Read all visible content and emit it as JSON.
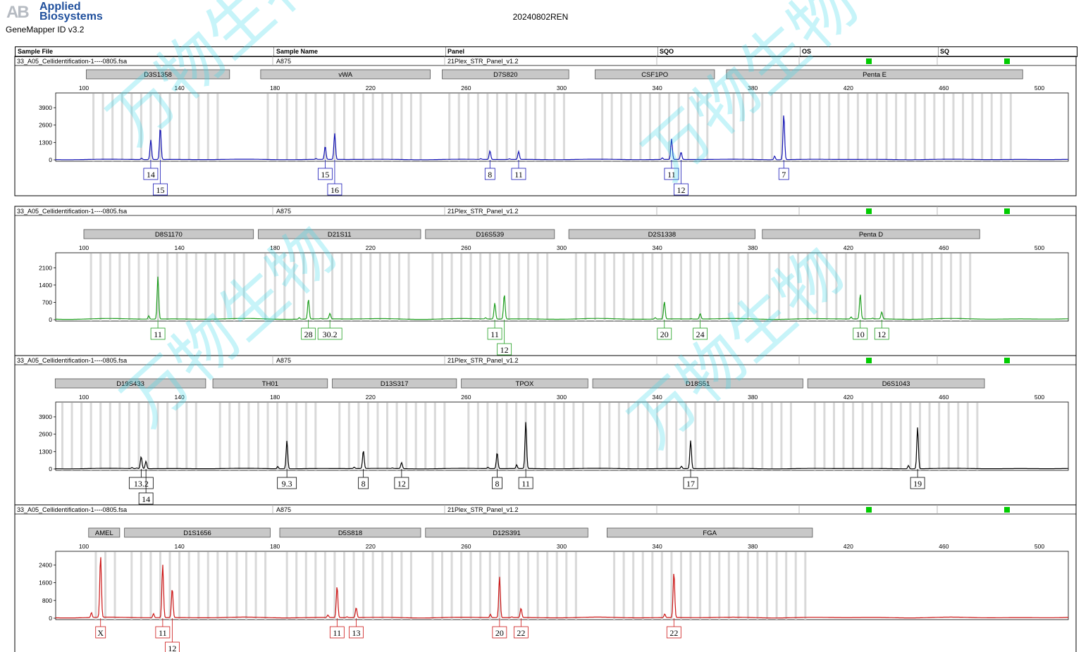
{
  "header": {
    "logo_mark": "AB",
    "logo_line1": "Applied",
    "logo_line2": "Biosystems",
    "software": "GeneMapper ID v3.2",
    "run_title": "20240802REN"
  },
  "table_columns": [
    "Sample File",
    "Sample Name",
    "Panel",
    "SQO",
    "OS",
    "SQ"
  ],
  "panels": [
    {
      "sample_file": "33_A05_Cellidentification-1----0805.fsa",
      "sample_name": "A875",
      "panel": "21Plex_STR_Panel_v1.2",
      "dye_color": "#1515b5",
      "y_ticks": [
        0,
        1300,
        2600,
        3900
      ],
      "y_max": 4900,
      "markers": [
        {
          "name": "D3S1358",
          "start": 101,
          "end": 161
        },
        {
          "name": "vWA",
          "start": 174,
          "end": 245
        },
        {
          "name": "D7S820",
          "start": 250,
          "end": 303
        },
        {
          "name": "CSF1PO",
          "start": 314,
          "end": 364
        },
        {
          "name": "Penta E",
          "start": 369,
          "end": 493
        }
      ],
      "peaks": [
        {
          "size": 128,
          "height": 1300,
          "allele": "14",
          "level": 1
        },
        {
          "size": 132,
          "height": 2400,
          "allele": "15",
          "level": 2
        },
        {
          "size": 201,
          "height": 850,
          "allele": "15",
          "level": 1
        },
        {
          "size": 205,
          "height": 1950,
          "allele": "16",
          "level": 2
        },
        {
          "size": 270,
          "height": 650,
          "allele": "8",
          "level": 1
        },
        {
          "size": 282,
          "height": 600,
          "allele": "11",
          "level": 1
        },
        {
          "size": 346,
          "height": 1500,
          "allele": "11",
          "level": 1
        },
        {
          "size": 350,
          "height": 550,
          "allele": "12",
          "level": 2
        },
        {
          "size": 393,
          "height": 3400,
          "allele": "7",
          "level": 1
        }
      ]
    },
    {
      "sample_file": "33_A05_Cellidentification-1----0805.fsa",
      "sample_name": "A875",
      "panel": "21Plex_STR_Panel_v1.2",
      "dye_color": "#1f9e1f",
      "y_ticks": [
        0,
        700,
        1400,
        2100
      ],
      "y_max": 2650,
      "markers": [
        {
          "name": "D8S1170",
          "start": 100,
          "end": 171
        },
        {
          "name": "D21S11",
          "start": 173,
          "end": 241
        },
        {
          "name": "D16S539",
          "start": 243,
          "end": 297
        },
        {
          "name": "D2S1338",
          "start": 303,
          "end": 381
        },
        {
          "name": "Penta D",
          "start": 384,
          "end": 475
        }
      ],
      "peaks": [
        {
          "size": 131,
          "height": 1720,
          "allele": "11",
          "level": 1
        },
        {
          "size": 194,
          "height": 800,
          "allele": "28",
          "level": 1
        },
        {
          "size": 203,
          "height": 220,
          "allele": "30.2",
          "level": 1
        },
        {
          "size": 272,
          "height": 580,
          "allele": "11",
          "level": 1
        },
        {
          "size": 276,
          "height": 1000,
          "allele": "12",
          "level": 2
        },
        {
          "size": 343,
          "height": 700,
          "allele": "20",
          "level": 1
        },
        {
          "size": 358,
          "height": 220,
          "allele": "24",
          "level": 1
        },
        {
          "size": 425,
          "height": 1000,
          "allele": "10",
          "level": 1
        },
        {
          "size": 434,
          "height": 280,
          "allele": "12",
          "level": 1
        }
      ]
    },
    {
      "sample_file": "33_A05_Cellidentification-1----0805.fsa",
      "sample_name": "A875",
      "panel": "21Plex_STR_Panel_v1.2",
      "dye_color": "#000000",
      "y_ticks": [
        0,
        1300,
        2600,
        3900
      ],
      "y_max": 4900,
      "markers": [
        {
          "name": "D19S433",
          "start": 88,
          "end": 151
        },
        {
          "name": "TH01",
          "start": 154,
          "end": 202
        },
        {
          "name": "D13S317",
          "start": 204,
          "end": 256
        },
        {
          "name": "TPOX",
          "start": 258,
          "end": 311
        },
        {
          "name": "D18S51",
          "start": 313,
          "end": 401
        },
        {
          "name": "D6S1043",
          "start": 403,
          "end": 477
        }
      ],
      "peaks": [
        {
          "size": 124,
          "height": 900,
          "allele": "13.2",
          "level": 1
        },
        {
          "size": 126,
          "height": 550,
          "allele": "14",
          "level": 2
        },
        {
          "size": 185,
          "height": 2100,
          "allele": "9.3",
          "level": 1
        },
        {
          "size": 217,
          "height": 1350,
          "allele": "8",
          "level": 1
        },
        {
          "size": 233,
          "height": 450,
          "allele": "12",
          "level": 1
        },
        {
          "size": 273,
          "height": 1200,
          "allele": "8",
          "level": 1
        },
        {
          "size": 285,
          "height": 3500,
          "allele": "11",
          "level": 1
        },
        {
          "size": 354,
          "height": 2100,
          "allele": "17",
          "level": 1
        },
        {
          "size": 449,
          "height": 3100,
          "allele": "19",
          "level": 1
        }
      ]
    },
    {
      "sample_file": "33_A05_Cellidentification-1----0805.fsa",
      "sample_name": "A875",
      "panel": "21Plex_STR_Panel_v1.2",
      "dye_color": "#cc1515",
      "y_ticks": [
        0,
        800,
        1600,
        2400
      ],
      "y_max": 2950,
      "markers": [
        {
          "name": "AMEL",
          "start": 102,
          "end": 115
        },
        {
          "name": "D1S1656",
          "start": 117,
          "end": 178
        },
        {
          "name": "D5S818",
          "start": 182,
          "end": 241
        },
        {
          "name": "D12S391",
          "start": 243,
          "end": 311
        },
        {
          "name": "FGA",
          "start": 319,
          "end": 405
        }
      ],
      "peaks": [
        {
          "size": 107,
          "height": 2780,
          "allele": "X",
          "level": 1
        },
        {
          "size": 133,
          "height": 2300,
          "allele": "11",
          "level": 1
        },
        {
          "size": 137,
          "height": 1320,
          "allele": "12",
          "level": 2
        },
        {
          "size": 206,
          "height": 1420,
          "allele": "11",
          "level": 1
        },
        {
          "size": 214,
          "height": 450,
          "allele": "13",
          "level": 1
        },
        {
          "size": 274,
          "height": 1850,
          "allele": "20",
          "level": 1
        },
        {
          "size": 283,
          "height": 420,
          "allele": "22",
          "level": 1
        },
        {
          "size": 347,
          "height": 2050,
          "allele": "22",
          "level": 1
        }
      ]
    }
  ],
  "chart_data": [
    {
      "type": "line",
      "dye": "blue",
      "x_axis_ticks": [
        100,
        140,
        180,
        220,
        260,
        300,
        340,
        380,
        420,
        460,
        500
      ],
      "ylim": [
        0,
        4900
      ],
      "markers": [
        "D3S1358",
        "vWA",
        "D7S820",
        "CSF1PO",
        "Penta E"
      ],
      "peaks": [
        [
          128,
          1300,
          "14"
        ],
        [
          132,
          2400,
          "15"
        ],
        [
          201,
          850,
          "15"
        ],
        [
          205,
          1950,
          "16"
        ],
        [
          270,
          650,
          "8"
        ],
        [
          282,
          600,
          "11"
        ],
        [
          346,
          1500,
          "11"
        ],
        [
          350,
          550,
          "12"
        ],
        [
          393,
          3400,
          "7"
        ]
      ]
    },
    {
      "type": "line",
      "dye": "green",
      "x_axis_ticks": [
        100,
        140,
        180,
        220,
        260,
        300,
        340,
        380,
        420,
        460,
        500
      ],
      "ylim": [
        0,
        2650
      ],
      "markers": [
        "D8S1170",
        "D21S11",
        "D16S539",
        "D2S1338",
        "Penta D"
      ],
      "peaks": [
        [
          131,
          1720,
          "11"
        ],
        [
          194,
          800,
          "28"
        ],
        [
          203,
          220,
          "30.2"
        ],
        [
          272,
          580,
          "11"
        ],
        [
          276,
          1000,
          "12"
        ],
        [
          343,
          700,
          "20"
        ],
        [
          358,
          220,
          "24"
        ],
        [
          425,
          1000,
          "10"
        ],
        [
          434,
          280,
          "12"
        ]
      ]
    },
    {
      "type": "line",
      "dye": "black",
      "x_axis_ticks": [
        100,
        140,
        180,
        220,
        260,
        300,
        340,
        380,
        420,
        460,
        500
      ],
      "ylim": [
        0,
        4900
      ],
      "markers": [
        "D19S433",
        "TH01",
        "D13S317",
        "TPOX",
        "D18S51",
        "D6S1043"
      ],
      "peaks": [
        [
          124,
          900,
          "13.2"
        ],
        [
          126,
          550,
          "14"
        ],
        [
          185,
          2100,
          "9.3"
        ],
        [
          217,
          1350,
          "8"
        ],
        [
          233,
          450,
          "12"
        ],
        [
          273,
          1200,
          "8"
        ],
        [
          285,
          3500,
          "11"
        ],
        [
          354,
          2100,
          "17"
        ],
        [
          449,
          3100,
          "19"
        ]
      ]
    },
    {
      "type": "line",
      "dye": "red",
      "x_axis_ticks": [
        100,
        140,
        180,
        220,
        260,
        300,
        340,
        380,
        420,
        460,
        500
      ],
      "ylim": [
        0,
        2950
      ],
      "markers": [
        "AMEL",
        "D1S1656",
        "D5S818",
        "D12S391",
        "FGA"
      ],
      "peaks": [
        [
          107,
          2780,
          "X"
        ],
        [
          133,
          2300,
          "11"
        ],
        [
          137,
          1320,
          "12"
        ],
        [
          206,
          1420,
          "11"
        ],
        [
          214,
          450,
          "13"
        ],
        [
          274,
          1850,
          "20"
        ],
        [
          283,
          420,
          "22"
        ],
        [
          347,
          2050,
          "22"
        ]
      ]
    }
  ],
  "x_axis_ticks": [
    100,
    140,
    180,
    220,
    260,
    300,
    340,
    380,
    420,
    460,
    500
  ],
  "status_color": "#00cc00",
  "watermark_glyphs": [
    "万",
    "物",
    "生",
    "物"
  ]
}
